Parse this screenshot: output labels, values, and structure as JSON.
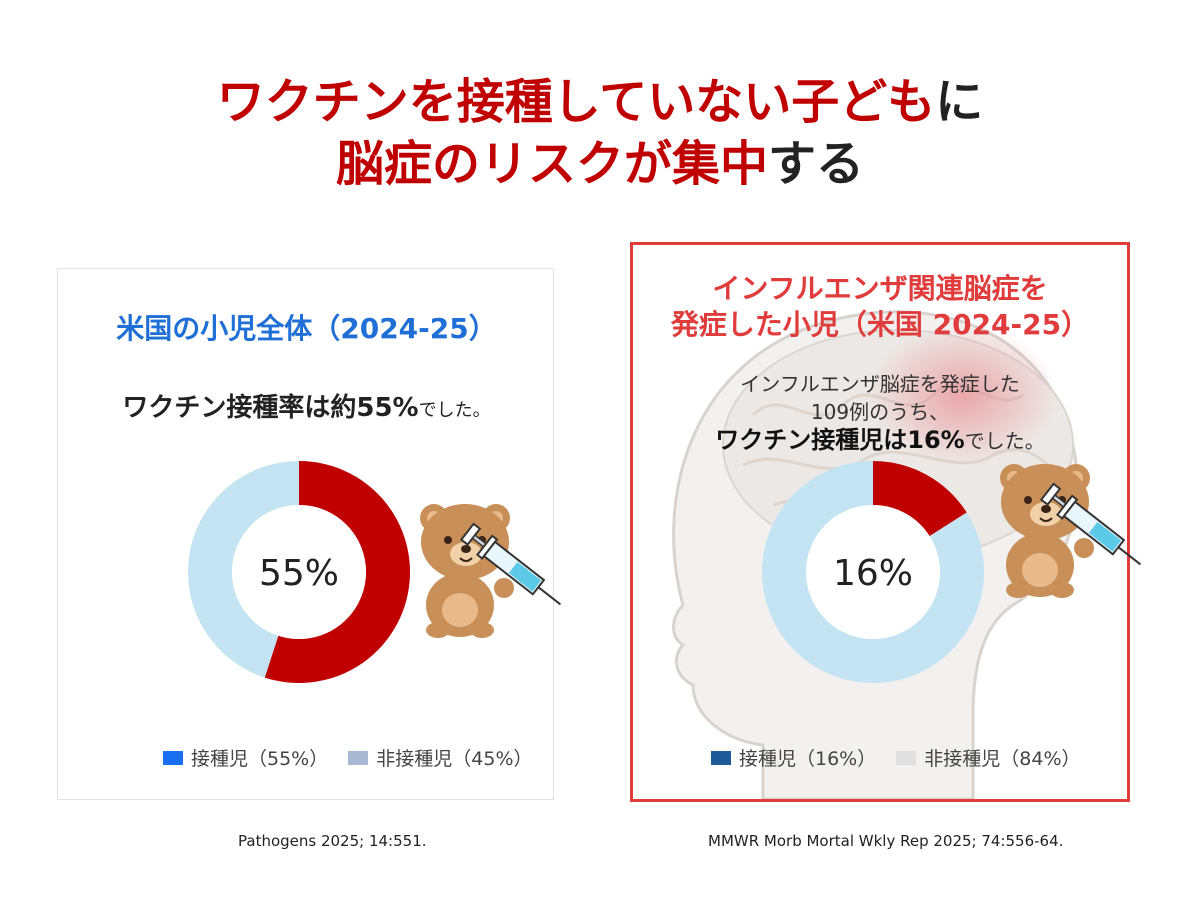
{
  "title": {
    "line1_red": "ワクチンを接種していない子ども",
    "line1_dark": "に",
    "line2_red": "脳症のリスクが集中",
    "line2_dark": "する"
  },
  "left_panel": {
    "title": "米国の小児全体（2024-25）",
    "lead_prefix": "ワクチン接種率は約55%",
    "lead_suffix": "でした。",
    "center_label": "55%",
    "legend": [
      {
        "label": "接種児（55%）",
        "color": "#1a6ff0"
      },
      {
        "label": "非接種児（45%）",
        "color": "#a9b9d4"
      }
    ],
    "citation": "Pathogens 2025; 14:551."
  },
  "right_panel": {
    "title_line1": "インフルエンザ関連脳症を",
    "title_line2": "発症した小児（米国 2024-25）",
    "lead_line1": "インフルエンザ脳症を発症した",
    "lead_line2": "109例のうち、",
    "lead_line3_bold": "ワクチン接種児は16%",
    "lead_line3_suffix": "でした。",
    "center_label": "16%",
    "legend": [
      {
        "label": "接種児（16%）",
        "color": "#1f5a9a"
      },
      {
        "label": "非接種児（84%）",
        "color": "#e0e0e0"
      }
    ],
    "citation": "MMWR Morb Mortal Wkly Rep 2025; 74:556-64."
  },
  "colors": {
    "accent_red": "#c00000",
    "ring_light": "#c4e3f3",
    "frame_red": "#e03c3c",
    "title_blue": "#1f6fd6"
  },
  "chart_data": [
    {
      "type": "pie",
      "title": "米国の小児全体（2024-25）",
      "categories": [
        "接種児",
        "非接種児"
      ],
      "values": [
        55,
        45
      ],
      "unit": "%"
    },
    {
      "type": "pie",
      "title": "インフルエンザ関連脳症を発症した小児（米国 2024-25）",
      "categories": [
        "接種児",
        "非接種児"
      ],
      "values": [
        16,
        84
      ],
      "unit": "%"
    }
  ]
}
